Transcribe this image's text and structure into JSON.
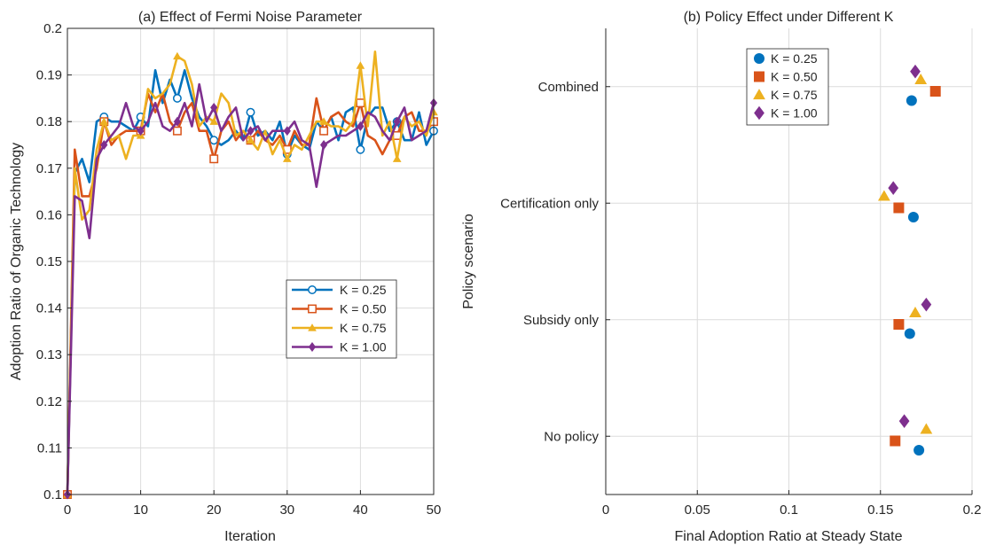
{
  "chart_data": [
    {
      "type": "line",
      "title": "(a) Effect of Fermi Noise Parameter",
      "xlabel": "Iteration",
      "ylabel": "Adoption Ratio of Organic Technology",
      "xlim": [
        0,
        50
      ],
      "ylim": [
        0.1,
        0.2
      ],
      "xticks": [
        "0",
        "10",
        "20",
        "30",
        "40",
        "50"
      ],
      "yticks": [
        "0.1",
        "0.11",
        "0.12",
        "0.13",
        "0.14",
        "0.15",
        "0.16",
        "0.17",
        "0.18",
        "0.19",
        "0.2"
      ],
      "grid": true,
      "legend_position": "center-right",
      "x": [
        0,
        1,
        2,
        3,
        4,
        5,
        6,
        7,
        8,
        9,
        10,
        11,
        12,
        13,
        14,
        15,
        16,
        17,
        18,
        19,
        20,
        21,
        22,
        23,
        24,
        25,
        26,
        27,
        28,
        29,
        30,
        31,
        32,
        33,
        34,
        35,
        36,
        37,
        38,
        39,
        40,
        41,
        42,
        43,
        44,
        45,
        46,
        47,
        48,
        49,
        50
      ],
      "series": [
        {
          "name": "K = 0.25",
          "color": "#0072BD",
          "marker": "circle",
          "values": [
            0.1,
            0.169,
            0.172,
            0.167,
            0.18,
            0.181,
            0.18,
            0.18,
            0.179,
            0.178,
            0.181,
            0.179,
            0.191,
            0.184,
            0.189,
            0.185,
            0.191,
            0.185,
            0.181,
            0.179,
            0.176,
            0.175,
            0.176,
            0.178,
            0.176,
            0.182,
            0.177,
            0.178,
            0.176,
            0.18,
            0.173,
            0.177,
            0.175,
            0.174,
            0.18,
            0.178,
            0.181,
            0.176,
            0.182,
            0.183,
            0.174,
            0.181,
            0.183,
            0.183,
            0.178,
            0.18,
            0.176,
            0.176,
            0.182,
            0.175,
            0.178
          ]
        },
        {
          "name": "K = 0.50",
          "color": "#D95319",
          "marker": "square",
          "values": [
            0.1,
            0.174,
            0.164,
            0.164,
            0.17,
            0.18,
            0.175,
            0.177,
            0.178,
            0.178,
            0.178,
            0.186,
            0.182,
            0.186,
            0.18,
            0.178,
            0.182,
            0.184,
            0.178,
            0.178,
            0.172,
            0.178,
            0.18,
            0.176,
            0.178,
            0.176,
            0.178,
            0.176,
            0.175,
            0.177,
            0.174,
            0.178,
            0.175,
            0.175,
            0.185,
            0.178,
            0.181,
            0.182,
            0.18,
            0.179,
            0.184,
            0.177,
            0.176,
            0.173,
            0.176,
            0.177,
            0.181,
            0.182,
            0.178,
            0.178,
            0.18
          ]
        },
        {
          "name": "K = 0.75",
          "color": "#EDB120",
          "marker": "triangle",
          "values": [
            0.1,
            0.17,
            0.159,
            0.161,
            0.174,
            0.18,
            0.176,
            0.177,
            0.172,
            0.177,
            0.177,
            0.187,
            0.185,
            0.186,
            0.188,
            0.194,
            0.193,
            0.188,
            0.179,
            0.181,
            0.18,
            0.186,
            0.184,
            0.177,
            0.178,
            0.176,
            0.174,
            0.178,
            0.173,
            0.176,
            0.172,
            0.175,
            0.174,
            0.177,
            0.18,
            0.18,
            0.179,
            0.179,
            0.178,
            0.18,
            0.192,
            0.179,
            0.195,
            0.177,
            0.18,
            0.172,
            0.181,
            0.179,
            0.18,
            0.177,
            0.182
          ]
        },
        {
          "name": "K = 1.00",
          "color": "#7E2F8E",
          "marker": "diamond",
          "values": [
            0.1,
            0.164,
            0.163,
            0.155,
            0.172,
            0.175,
            0.177,
            0.179,
            0.184,
            0.179,
            0.178,
            0.18,
            0.184,
            0.179,
            0.178,
            0.18,
            0.184,
            0.179,
            0.188,
            0.18,
            0.183,
            0.178,
            0.181,
            0.183,
            0.176,
            0.178,
            0.179,
            0.176,
            0.178,
            0.178,
            0.178,
            0.18,
            0.176,
            0.175,
            0.166,
            0.175,
            0.176,
            0.177,
            0.177,
            0.178,
            0.179,
            0.182,
            0.181,
            0.178,
            0.176,
            0.18,
            0.183,
            0.176,
            0.177,
            0.178,
            0.184
          ]
        }
      ]
    },
    {
      "type": "scatter",
      "title": "(b) Policy Effect under Different K",
      "xlabel": "Final Adoption Ratio at Steady State",
      "ylabel": "Policy scenario",
      "xlim": [
        0,
        0.2
      ],
      "xticks": [
        "0",
        "0.05",
        "0.1",
        "0.15",
        "0.2"
      ],
      "categories": [
        "No policy",
        "Subsidy only",
        "Certification only",
        "Combined"
      ],
      "grid": true,
      "legend_position": "top-left",
      "series": [
        {
          "name": "K = 0.25",
          "color": "#0072BD",
          "marker": "circle",
          "offset": -0.12,
          "values": [
            0.171,
            0.166,
            0.168,
            0.167
          ]
        },
        {
          "name": "K = 0.50",
          "color": "#D95319",
          "marker": "square",
          "offset": -0.04,
          "values": [
            0.158,
            0.16,
            0.16,
            0.18
          ]
        },
        {
          "name": "K = 0.75",
          "color": "#EDB120",
          "marker": "triangle",
          "offset": 0.06,
          "values": [
            0.175,
            0.169,
            0.152,
            0.172
          ]
        },
        {
          "name": "K = 1.00",
          "color": "#7E2F8E",
          "marker": "diamond",
          "offset": 0.13,
          "values": [
            0.163,
            0.175,
            0.157,
            0.169
          ]
        }
      ]
    }
  ]
}
